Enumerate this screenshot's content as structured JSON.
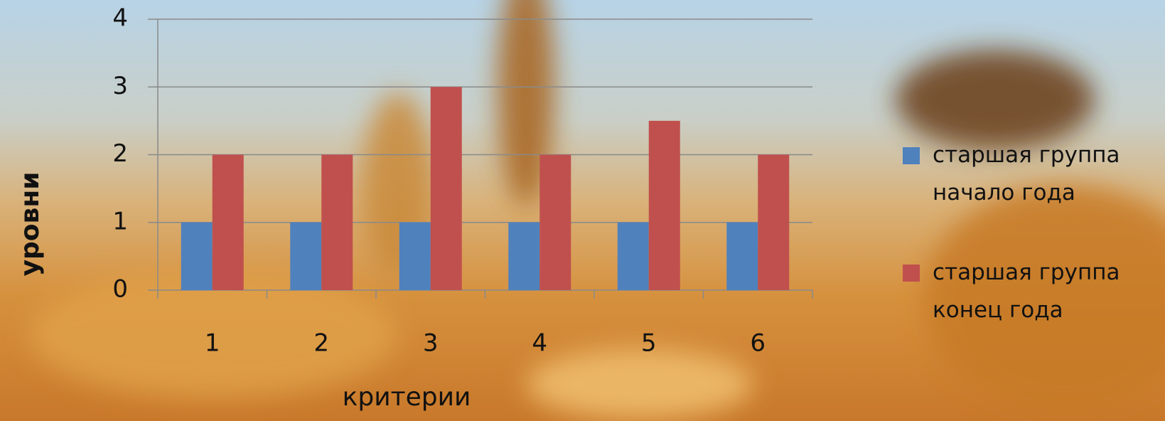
{
  "chart_data": {
    "type": "bar",
    "xlabel": "критерии",
    "ylabel": "уровни",
    "categories": [
      "1",
      "2",
      "3",
      "4",
      "5",
      "6"
    ],
    "series": [
      {
        "name": "старшая группа начало года",
        "color": "#4f81bd",
        "values": [
          1,
          1,
          1,
          1,
          1,
          1
        ]
      },
      {
        "name": "старшая группа конец года",
        "color": "#c0504d",
        "values": [
          2,
          2,
          3,
          2,
          2.5,
          2
        ]
      }
    ],
    "ylim": [
      0,
      4
    ],
    "yticks": [
      0,
      1,
      2,
      3,
      4
    ],
    "grid": true,
    "legend": "right"
  }
}
